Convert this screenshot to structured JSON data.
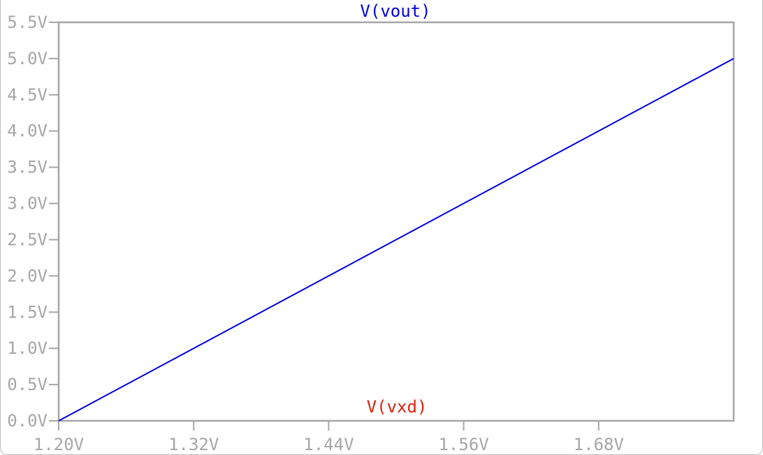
{
  "chart_data": {
    "type": "line",
    "title": "V(vout)",
    "xlabel": "V(vxd)",
    "ylabel": "",
    "xlim": [
      1.2,
      1.8
    ],
    "ylim": [
      0.0,
      5.5
    ],
    "x_ticks": [
      {
        "value": 1.2,
        "label": "1.20V"
      },
      {
        "value": 1.32,
        "label": "1.32V"
      },
      {
        "value": 1.44,
        "label": "1.44V"
      },
      {
        "value": 1.56,
        "label": "1.56V"
      },
      {
        "value": 1.68,
        "label": "1.68V"
      }
    ],
    "y_ticks": [
      {
        "value": 0.0,
        "label": "0.0V"
      },
      {
        "value": 0.5,
        "label": "0.5V"
      },
      {
        "value": 1.0,
        "label": "1.0V"
      },
      {
        "value": 1.5,
        "label": "1.5V"
      },
      {
        "value": 2.0,
        "label": "2.0V"
      },
      {
        "value": 2.5,
        "label": "2.5V"
      },
      {
        "value": 3.0,
        "label": "3.0V"
      },
      {
        "value": 3.5,
        "label": "3.5V"
      },
      {
        "value": 4.0,
        "label": "4.0V"
      },
      {
        "value": 4.5,
        "label": "4.5V"
      },
      {
        "value": 5.0,
        "label": "5.0V"
      },
      {
        "value": 5.5,
        "label": "5.5V"
      }
    ],
    "series": [
      {
        "name": "V(vout)",
        "color": "#0000dd",
        "x": [
          1.2,
          1.8
        ],
        "y": [
          0.0,
          5.0
        ]
      }
    ],
    "grid": false,
    "colors": {
      "title": "#0000dd",
      "xlabel": "#dd2211",
      "frame": "#a6a6a6",
      "ticks": "#a6a6a6"
    }
  }
}
